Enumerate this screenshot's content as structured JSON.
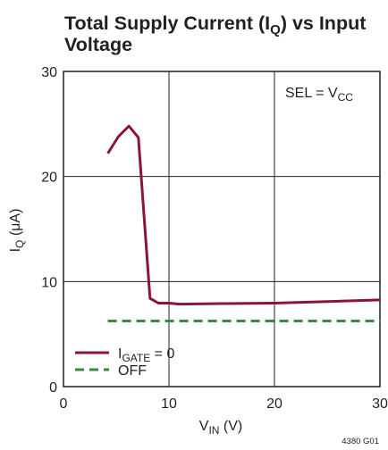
{
  "chart_data": {
    "type": "line",
    "title": {
      "line1_before": "Total Supply Current (I",
      "line1_sub": "Q",
      "line1_after": ") vs Input",
      "line2": "Voltage"
    },
    "xlabel": {
      "main": "V",
      "sub": "IN",
      "unit": " (V)"
    },
    "ylabel": {
      "main": "I",
      "sub": "Q",
      "unit": " (μA)"
    },
    "xlim": [
      0,
      30
    ],
    "ylim": [
      0,
      30
    ],
    "x_ticks": [
      0,
      10,
      20,
      30
    ],
    "y_ticks": [
      0,
      10,
      20,
      30
    ],
    "grid": true,
    "annotation": {
      "main": "SEL = V",
      "sub": "CC"
    },
    "legend_position": "bottom-left",
    "series": [
      {
        "name": {
          "main": "I",
          "sub": "GATE",
          "suffix": " = 0"
        },
        "color": "#8b1538",
        "style": "solid",
        "x": [
          4.2,
          5.2,
          6.2,
          7.1,
          8.2,
          9.0,
          10.0,
          11.0,
          15.0,
          20.0,
          25.0,
          30.0
        ],
        "y": [
          22.2,
          23.8,
          24.8,
          23.7,
          8.4,
          7.95,
          7.95,
          7.85,
          7.9,
          7.95,
          8.1,
          8.25
        ]
      },
      {
        "name": {
          "main": "OFF",
          "sub": "",
          "suffix": ""
        },
        "color": "#3a8a3f",
        "style": "dashed",
        "x": [
          4.2,
          30.0
        ],
        "y": [
          6.25,
          6.25
        ]
      }
    ],
    "figure_code": "4380 G01"
  }
}
